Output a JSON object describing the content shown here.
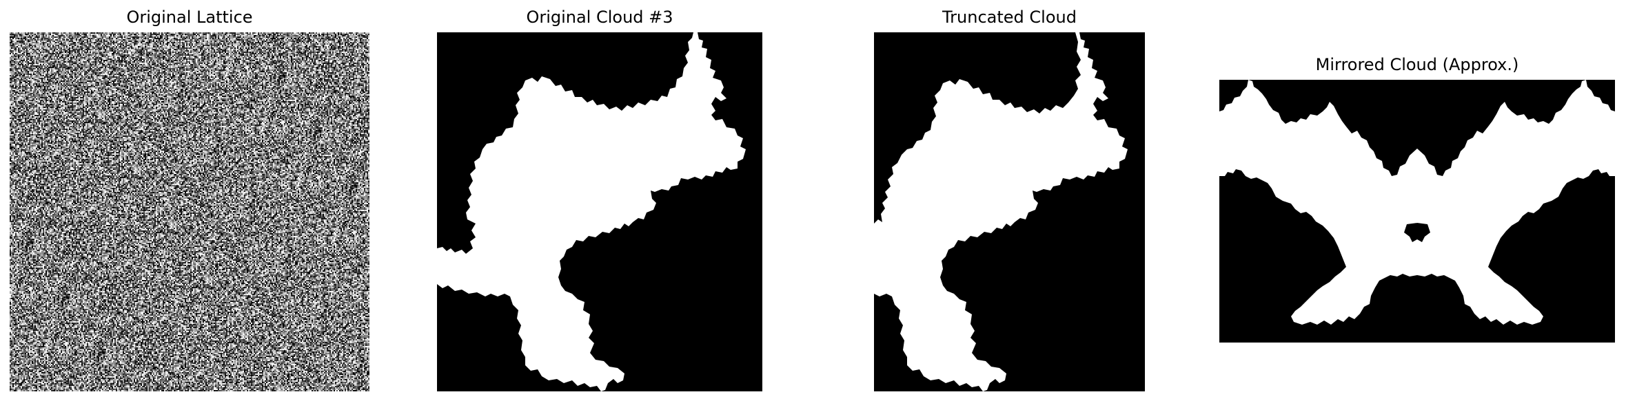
{
  "figure": {
    "panels": [
      {
        "id": "original-lattice",
        "title": "Original Lattice",
        "kind": "noise-lattice"
      },
      {
        "id": "original-cloud",
        "title": "Original Cloud #3",
        "kind": "binary-cloud"
      },
      {
        "id": "truncated-cloud",
        "title": "Truncated Cloud",
        "kind": "binary-cloud"
      },
      {
        "id": "mirrored-cloud",
        "title": "Mirrored Cloud (Approx.)",
        "kind": "binary-cloud"
      }
    ],
    "colors": {
      "background": "#000000",
      "cloud": "#ffffff",
      "noise_low": "#000000",
      "noise_high": "#ffffff"
    }
  }
}
